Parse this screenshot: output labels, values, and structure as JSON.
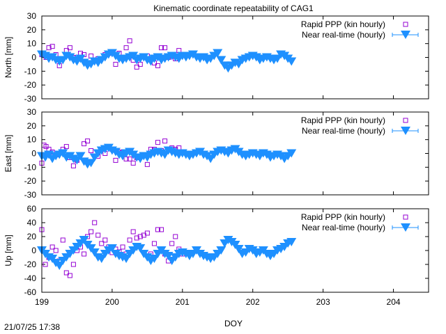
{
  "title": "Kinematic coordinate repeatability of CAG1",
  "timestamp": "21/07/25 17:38",
  "xlabel": "DOY",
  "x_ticks": [
    "199",
    "200",
    "201",
    "202",
    "203",
    "204"
  ],
  "colors": {
    "rapid": "#9400d3",
    "nrt": "#1e90ff",
    "axes": "#000000"
  },
  "chart_data": [
    {
      "type": "scatter",
      "ylabel": "North [mm]",
      "xlim": [
        199,
        204.5
      ],
      "ylim": [
        -30,
        30
      ],
      "y_ticks": [
        "-30",
        "-20",
        "-10",
        "0",
        "10",
        "20",
        "30"
      ],
      "legend_position": "top-right",
      "series": [
        {
          "name": "Rapid PPP (kin hourly)",
          "marker": "square",
          "x": [
            199.0,
            199.06,
            199.1,
            199.15,
            199.2,
            199.25,
            199.35,
            199.4,
            199.45,
            199.55,
            199.6,
            199.7,
            199.8,
            199.9,
            199.95,
            200.05,
            200.1,
            200.2,
            200.25,
            200.3,
            200.35,
            200.4,
            200.5,
            200.6,
            200.65,
            200.7,
            200.75,
            200.8,
            200.9,
            200.95,
            201.0
          ],
          "y": [
            2,
            0,
            7,
            8,
            2,
            -6,
            5,
            7,
            0,
            3,
            2,
            1,
            -1,
            2,
            3,
            -5,
            3,
            7,
            12,
            -2,
            -7,
            -5,
            1,
            -4,
            -6,
            7,
            7,
            0,
            -1,
            5,
            2
          ]
        },
        {
          "name": "Near real-time (hourly)",
          "marker": "triangle-down",
          "x": [
            199.0,
            199.05,
            199.1,
            199.15,
            199.2,
            199.25,
            199.3,
            199.35,
            199.4,
            199.45,
            199.5,
            199.55,
            199.6,
            199.65,
            199.7,
            199.75,
            199.8,
            199.85,
            199.9,
            199.95,
            200.0,
            200.05,
            200.1,
            200.15,
            200.2,
            200.25,
            200.3,
            200.35,
            200.4,
            200.45,
            200.5,
            200.55,
            200.6,
            200.65,
            200.7,
            200.75,
            200.8,
            200.85,
            200.9,
            200.95,
            201.0,
            201.05,
            201.1,
            201.15,
            201.2,
            201.25,
            201.3,
            201.35,
            201.4,
            201.45,
            201.5,
            201.55,
            201.6,
            201.65,
            201.7,
            201.75,
            201.8,
            201.85,
            201.9,
            201.95,
            202.0,
            202.05,
            202.1,
            202.15,
            202.2,
            202.25,
            202.3,
            202.35,
            202.4,
            202.45,
            202.5,
            202.55
          ],
          "y": [
            2,
            1,
            -1,
            0,
            -2,
            -3,
            -2,
            1,
            0,
            -2,
            -3,
            -1,
            -4,
            -6,
            -5,
            -3,
            -4,
            -2,
            0,
            2,
            3,
            1,
            -1,
            -2,
            -1,
            0,
            1,
            -2,
            -1,
            0,
            -2,
            -3,
            -1,
            0,
            -2,
            -1,
            0,
            1,
            0,
            -1,
            1,
            0,
            1,
            2,
            0,
            -1,
            0,
            -2,
            -1,
            1,
            3,
            -2,
            -6,
            -8,
            -6,
            -4,
            -5,
            -2,
            -1,
            0,
            1,
            0,
            -2,
            -1,
            0,
            -1,
            -2,
            -1,
            2,
            1,
            -1,
            -3
          ]
        }
      ]
    },
    {
      "type": "scatter",
      "ylabel": "East [mm]",
      "xlim": [
        199,
        204.5
      ],
      "ylim": [
        -30,
        30
      ],
      "y_ticks": [
        "-30",
        "-20",
        "-10",
        "0",
        "10",
        "20",
        "30"
      ],
      "legend_position": "top-right",
      "series": [
        {
          "name": "Rapid PPP (kin hourly)",
          "marker": "square",
          "x": [
            199.0,
            199.03,
            199.06,
            199.1,
            199.15,
            199.2,
            199.3,
            199.35,
            199.4,
            199.45,
            199.5,
            199.6,
            199.65,
            199.7,
            199.8,
            199.9,
            200.0,
            200.05,
            200.1,
            200.15,
            200.2,
            200.25,
            200.3,
            200.35,
            200.5,
            200.55,
            200.6,
            200.65,
            200.7,
            200.75,
            200.8,
            200.85,
            200.9,
            200.95
          ],
          "y": [
            -7,
            6,
            5,
            3,
            1,
            -1,
            3,
            5,
            -3,
            -9,
            -5,
            7,
            9,
            2,
            -2,
            0,
            3,
            -5,
            1,
            1,
            -4,
            -4,
            -7,
            -3,
            -8,
            3,
            3,
            8,
            2,
            9,
            3,
            4,
            3,
            4
          ]
        },
        {
          "name": "Near real-time (hourly)",
          "marker": "triangle-down",
          "x": [
            199.0,
            199.05,
            199.1,
            199.15,
            199.2,
            199.25,
            199.3,
            199.35,
            199.4,
            199.45,
            199.5,
            199.55,
            199.6,
            199.65,
            199.7,
            199.75,
            199.8,
            199.85,
            199.9,
            199.95,
            200.0,
            200.05,
            200.1,
            200.15,
            200.2,
            200.25,
            200.3,
            200.35,
            200.4,
            200.45,
            200.5,
            200.55,
            200.6,
            200.65,
            200.7,
            200.75,
            200.8,
            200.85,
            200.9,
            200.95,
            201.0,
            201.05,
            201.1,
            201.15,
            201.2,
            201.25,
            201.3,
            201.35,
            201.4,
            201.45,
            201.5,
            201.55,
            201.6,
            201.65,
            201.7,
            201.75,
            201.8,
            201.85,
            201.9,
            201.95,
            202.0,
            202.05,
            202.1,
            202.15,
            202.2,
            202.25,
            202.3,
            202.35,
            202.4,
            202.45,
            202.5,
            202.55
          ],
          "y": [
            -2,
            -3,
            -1,
            -4,
            -2,
            -1,
            0,
            -3,
            -2,
            -4,
            -5,
            -2,
            -6,
            -8,
            -7,
            -3,
            0,
            2,
            3,
            4,
            2,
            1,
            -1,
            -2,
            0,
            1,
            -1,
            -3,
            -4,
            -2,
            -3,
            -1,
            0,
            1,
            0,
            -1,
            2,
            1,
            0,
            -1,
            0,
            -1,
            -2,
            -1,
            0,
            1,
            -1,
            -2,
            -4,
            -1,
            1,
            2,
            1,
            0,
            2,
            3,
            1,
            -1,
            -2,
            -1,
            0,
            -1,
            -2,
            0,
            -1,
            -3,
            -2,
            -1,
            -2,
            -4,
            -2,
            0
          ]
        }
      ]
    },
    {
      "type": "scatter",
      "ylabel": "Up [mm]",
      "xlim": [
        199,
        204.5
      ],
      "ylim": [
        -60,
        60
      ],
      "y_ticks": [
        "-60",
        "-40",
        "-20",
        "0",
        "20",
        "40",
        "60"
      ],
      "legend_position": "top-right",
      "series": [
        {
          "name": "Rapid PPP (kin hourly)",
          "marker": "square",
          "x": [
            199.0,
            199.05,
            199.1,
            199.15,
            199.2,
            199.25,
            199.3,
            199.35,
            199.4,
            199.45,
            199.5,
            199.55,
            199.6,
            199.65,
            199.7,
            199.75,
            199.8,
            199.85,
            199.9,
            199.95,
            200.0,
            200.05,
            200.1,
            200.15,
            200.2,
            200.25,
            200.3,
            200.35,
            200.4,
            200.45,
            200.5,
            200.55,
            200.6,
            200.65,
            200.7,
            200.75,
            200.8,
            200.85,
            200.9,
            200.95,
            201.0
          ],
          "y": [
            30,
            -20,
            -10,
            5,
            0,
            -15,
            15,
            -32,
            -36,
            -20,
            0,
            5,
            -5,
            20,
            27,
            40,
            22,
            10,
            15,
            5,
            -3,
            2,
            -2,
            5,
            -5,
            15,
            27,
            18,
            20,
            22,
            25,
            -5,
            10,
            30,
            30,
            -5,
            -15,
            10,
            20,
            2,
            -5
          ]
        },
        {
          "name": "Near real-time (hourly)",
          "marker": "triangle-down",
          "x": [
            199.0,
            199.05,
            199.1,
            199.15,
            199.2,
            199.25,
            199.3,
            199.35,
            199.4,
            199.45,
            199.5,
            199.55,
            199.6,
            199.65,
            199.7,
            199.75,
            199.8,
            199.85,
            199.9,
            199.95,
            200.0,
            200.05,
            200.1,
            200.15,
            200.2,
            200.25,
            200.3,
            200.35,
            200.4,
            200.45,
            200.5,
            200.55,
            200.6,
            200.65,
            200.7,
            200.75,
            200.8,
            200.85,
            200.9,
            200.95,
            201.0,
            201.05,
            201.1,
            201.15,
            201.2,
            201.25,
            201.3,
            201.35,
            201.4,
            201.45,
            201.5,
            201.55,
            201.6,
            201.65,
            201.7,
            201.75,
            201.8,
            201.85,
            201.9,
            201.95,
            202.0,
            202.05,
            202.1,
            202.15,
            202.2,
            202.25,
            202.3,
            202.35,
            202.4,
            202.45,
            202.5,
            202.55
          ],
          "y": [
            0,
            -5,
            -10,
            -12,
            -18,
            -22,
            -15,
            -10,
            -5,
            0,
            5,
            10,
            15,
            8,
            3,
            -3,
            -10,
            -12,
            -5,
            0,
            3,
            -5,
            -8,
            -10,
            -12,
            -5,
            0,
            5,
            3,
            -5,
            -10,
            -15,
            -12,
            -5,
            0,
            -5,
            -8,
            -15,
            -10,
            -5,
            -3,
            -5,
            -8,
            -5,
            0,
            -5,
            -8,
            -10,
            -12,
            -10,
            -5,
            0,
            10,
            15,
            12,
            8,
            2,
            -5,
            -3,
            2,
            0,
            -5,
            -3,
            0,
            -5,
            -8,
            -5,
            0,
            2,
            5,
            10,
            12
          ]
        }
      ]
    }
  ]
}
